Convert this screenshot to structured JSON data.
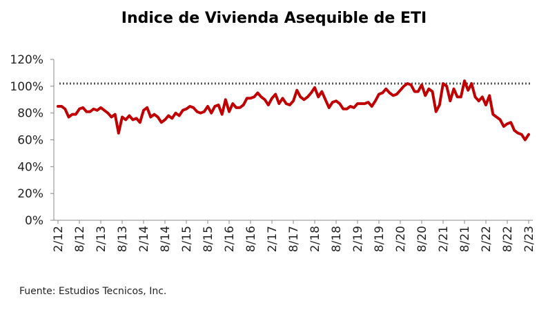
{
  "chart_data": {
    "type": "line",
    "title": "Indice de Vivienda Asequible de ETI",
    "source": "Fuente: Estudios Tecnicos, Inc.",
    "xlabel": "",
    "ylabel": "",
    "ylim": [
      0,
      120
    ],
    "y_ticks": [
      "0%",
      "20%",
      "40%",
      "60%",
      "80%",
      "100%",
      "120%"
    ],
    "x_ticks": [
      "2/12",
      "8/12",
      "2/13",
      "8/13",
      "2/14",
      "8/14",
      "2/15",
      "8/15",
      "2/16",
      "8/16",
      "2/17",
      "8/17",
      "2/18",
      "8/18",
      "2/19",
      "8/19",
      "2/20",
      "8/20",
      "2/21",
      "8/21",
      "2/22",
      "8/22",
      "2/23"
    ],
    "reference_line": {
      "value": 102,
      "style": "dotted",
      "color": "#555555"
    },
    "grid": false,
    "series": [
      {
        "color": "#c00000",
        "values": [
          85,
          85,
          83,
          77,
          79,
          79,
          83,
          84,
          81,
          81,
          83,
          82,
          84,
          82,
          80,
          77,
          79,
          65,
          77,
          75,
          78,
          75,
          76,
          73,
          82,
          84,
          77,
          79,
          77,
          73,
          75,
          78,
          76,
          80,
          78,
          82,
          83,
          85,
          84,
          81,
          80,
          81,
          85,
          80,
          85,
          86,
          79,
          90,
          81,
          87,
          84,
          84,
          86,
          91,
          91,
          92,
          95,
          92,
          90,
          86,
          91,
          94,
          87,
          91,
          87,
          86,
          89,
          97,
          92,
          90,
          92,
          95,
          99,
          92,
          96,
          90,
          84,
          88,
          89,
          87,
          83,
          83,
          85,
          84,
          87,
          87,
          87,
          88,
          85,
          89,
          94,
          95,
          98,
          95,
          93,
          94,
          97,
          100,
          102,
          101,
          96,
          96,
          101,
          93,
          98,
          96,
          81,
          86,
          102,
          100,
          89,
          98,
          92,
          92,
          104,
          97,
          102,
          92,
          89,
          92,
          86,
          93,
          79,
          77,
          75,
          70,
          72,
          73,
          67,
          65,
          64,
          60,
          64
        ]
      }
    ]
  }
}
